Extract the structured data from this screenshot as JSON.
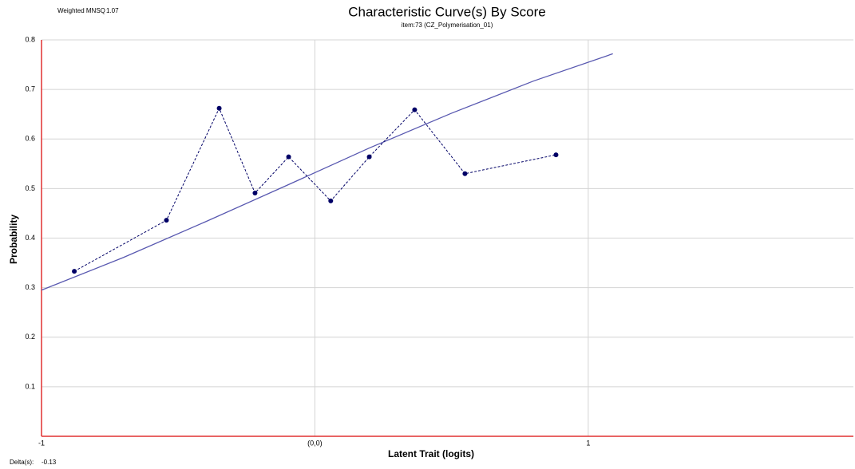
{
  "chart_data": {
    "type": "line",
    "title": "Characteristic Curve(s) By Score",
    "subtitle": "item:73 (CZ_Polymerisation_01)",
    "fit_label": "Weighted MNSQ",
    "fit_value": "1.07",
    "delta_label": "Delta(s):",
    "delta_value": "-0.13",
    "xlabel": "Latent Trait (logits)",
    "ylabel": "Probability",
    "xlim": [
      -1,
      1.97
    ],
    "ylim": [
      0,
      0.8
    ],
    "xticks": [
      -1,
      {
        "value": 0,
        "label": "(0,0)"
      },
      1
    ],
    "yticks": [
      0.1,
      0.2,
      0.3,
      0.4,
      0.5,
      0.6,
      0.7,
      0.8
    ],
    "grid": true,
    "series": [
      {
        "color": "#5858b0",
        "style": "solid",
        "markers": false,
        "x": [
          -1,
          -0.7,
          -0.4,
          -0.1,
          0.2,
          0.5,
          0.8,
          1.09
        ],
        "values": [
          0.295,
          0.361,
          0.433,
          0.507,
          0.582,
          0.652,
          0.717,
          0.772
        ]
      },
      {
        "color": "#000066",
        "style": "dashed",
        "markers": true,
        "x": [
          -0.88,
          -0.543,
          -0.35,
          -0.219,
          -0.096,
          0.058,
          0.199,
          0.365,
          0.549,
          0.882
        ],
        "values": [
          0.333,
          0.436,
          0.662,
          0.491,
          0.564,
          0.475,
          0.564,
          0.659,
          0.53,
          0.568
        ]
      }
    ]
  }
}
